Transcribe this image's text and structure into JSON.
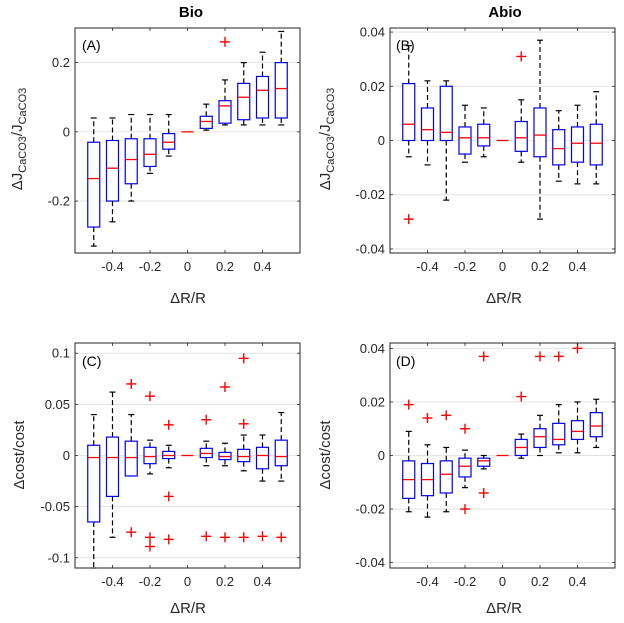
{
  "chart_data": [
    {
      "id": "A",
      "type": "box",
      "column_title": "Bio",
      "panel_label": "(A)",
      "xlabel": "ΔR/R",
      "ylabel_main": "ΔJ",
      "ylabel_sub1": "CaCO3",
      "ylabel_sep": "/J",
      "ylabel_sub2": "CaCO3",
      "xlim": [
        -0.6,
        0.6
      ],
      "ylim": [
        -0.35,
        0.3
      ],
      "xticks": [
        -0.4,
        -0.2,
        0,
        0.2,
        0.4
      ],
      "xtick_labels": [
        "-0.4",
        "-0.2",
        "0",
        "0.2",
        "0.4"
      ],
      "yticks": [
        -0.2,
        0,
        0.2
      ],
      "ytick_labels": [
        "-0.2",
        "0",
        "0.2"
      ],
      "grid": true,
      "boxes": [
        {
          "x": -0.5,
          "whislo": -0.33,
          "q1": -0.275,
          "med": -0.135,
          "q3": -0.03,
          "whishi": 0.04
        },
        {
          "x": -0.4,
          "whislo": -0.26,
          "q1": -0.2,
          "med": -0.105,
          "q3": -0.025,
          "whishi": 0.04
        },
        {
          "x": -0.3,
          "whislo": -0.2,
          "q1": -0.15,
          "med": -0.08,
          "q3": -0.02,
          "whishi": 0.05
        },
        {
          "x": -0.2,
          "whislo": -0.12,
          "q1": -0.1,
          "med": -0.065,
          "q3": -0.02,
          "whishi": 0.05
        },
        {
          "x": -0.1,
          "whislo": -0.07,
          "q1": -0.05,
          "med": -0.03,
          "q3": -0.005,
          "whishi": 0.05
        },
        {
          "x": 0,
          "whislo": 0,
          "q1": 0,
          "med": 0,
          "q3": 0,
          "whishi": 0
        },
        {
          "x": 0.1,
          "whislo": 0.005,
          "q1": 0.01,
          "med": 0.03,
          "q3": 0.045,
          "whishi": 0.08
        },
        {
          "x": 0.2,
          "whislo": 0.02,
          "q1": 0.025,
          "med": 0.075,
          "q3": 0.09,
          "whishi": 0.15
        },
        {
          "x": 0.3,
          "whislo": 0.02,
          "q1": 0.035,
          "med": 0.1,
          "q3": 0.14,
          "whishi": 0.2
        },
        {
          "x": 0.4,
          "whislo": 0.02,
          "q1": 0.04,
          "med": 0.12,
          "q3": 0.16,
          "whishi": 0.23
        },
        {
          "x": 0.5,
          "whislo": 0.02,
          "q1": 0.04,
          "med": 0.125,
          "q3": 0.2,
          "whishi": 0.29
        }
      ],
      "outliers": [
        {
          "x": 0.2,
          "y": 0.26
        }
      ]
    },
    {
      "id": "B",
      "type": "box",
      "column_title": "Abio",
      "panel_label": "(B)",
      "xlabel": "ΔR/R",
      "ylabel_main": "ΔJ",
      "ylabel_sub1": "CaCO3",
      "ylabel_sep": "/J",
      "ylabel_sub2": "CaCO3",
      "xlim": [
        -0.6,
        0.6
      ],
      "ylim": [
        -0.0415,
        0.0415
      ],
      "xticks": [
        -0.4,
        -0.2,
        0,
        0.2,
        0.4
      ],
      "xtick_labels": [
        "-0.4",
        "-0.2",
        "0",
        "0.2",
        "0.4"
      ],
      "yticks": [
        -0.04,
        -0.02,
        0,
        0.02,
        0.04
      ],
      "ytick_labels": [
        "-0.04",
        "-0.02",
        "0",
        "0.02",
        "0.04"
      ],
      "grid": true,
      "boxes": [
        {
          "x": -0.5,
          "whislo": -0.006,
          "q1": 0.0,
          "med": 0.006,
          "q3": 0.021,
          "whishi": 0.035
        },
        {
          "x": -0.4,
          "whislo": -0.009,
          "q1": 0.0,
          "med": 0.004,
          "q3": 0.012,
          "whishi": 0.022
        },
        {
          "x": -0.3,
          "whislo": -0.022,
          "q1": 0.0,
          "med": 0.003,
          "q3": 0.02,
          "whishi": 0.022
        },
        {
          "x": -0.2,
          "whislo": -0.008,
          "q1": -0.005,
          "med": 0.001,
          "q3": 0.005,
          "whishi": 0.013
        },
        {
          "x": -0.1,
          "whislo": -0.006,
          "q1": -0.002,
          "med": 0.001,
          "q3": 0.006,
          "whishi": 0.012
        },
        {
          "x": 0,
          "whislo": 0,
          "q1": 0,
          "med": 0,
          "q3": 0,
          "whishi": 0
        },
        {
          "x": 0.1,
          "whislo": -0.008,
          "q1": -0.004,
          "med": 0.001,
          "q3": 0.007,
          "whishi": 0.015
        },
        {
          "x": 0.2,
          "whislo": -0.029,
          "q1": -0.006,
          "med": 0.002,
          "q3": 0.012,
          "whishi": 0.037
        },
        {
          "x": 0.3,
          "whislo": -0.015,
          "q1": -0.009,
          "med": -0.003,
          "q3": 0.004,
          "whishi": 0.011
        },
        {
          "x": 0.4,
          "whislo": -0.016,
          "q1": -0.008,
          "med": -0.001,
          "q3": 0.005,
          "whishi": 0.013
        },
        {
          "x": 0.5,
          "whislo": -0.016,
          "q1": -0.009,
          "med": -0.001,
          "q3": 0.006,
          "whishi": 0.018
        }
      ],
      "outliers": [
        {
          "x": -0.5,
          "y": -0.029
        },
        {
          "x": 0.1,
          "y": 0.031
        }
      ]
    },
    {
      "id": "C",
      "type": "box",
      "column_title": "",
      "panel_label": "(C)",
      "xlabel": "ΔR/R",
      "ylabel_main": "Δcost/cost",
      "xlim": [
        -0.6,
        0.6
      ],
      "ylim": [
        -0.11,
        0.11
      ],
      "xticks": [
        -0.4,
        -0.2,
        0,
        0.2,
        0.4
      ],
      "xtick_labels": [
        "-0.4",
        "-0.2",
        "0",
        "0.2",
        "0.4"
      ],
      "yticks": [
        -0.1,
        -0.05,
        0,
        0.05,
        0.1
      ],
      "ytick_labels": [
        "-0.1",
        "-0.05",
        "0",
        "0.05",
        "0.1"
      ],
      "grid": true,
      "boxes": [
        {
          "x": -0.5,
          "whislo": -0.11,
          "q1": -0.065,
          "med": -0.002,
          "q3": 0.01,
          "whishi": 0.04
        },
        {
          "x": -0.4,
          "whislo": -0.08,
          "q1": -0.04,
          "med": -0.002,
          "q3": 0.018,
          "whishi": 0.062
        },
        {
          "x": -0.3,
          "whislo": -0.02,
          "q1": -0.02,
          "med": -0.002,
          "q3": 0.014,
          "whishi": 0.04
        },
        {
          "x": -0.2,
          "whislo": -0.018,
          "q1": -0.008,
          "med": -0.001,
          "q3": 0.008,
          "whishi": 0.015
        },
        {
          "x": -0.1,
          "whislo": -0.012,
          "q1": -0.003,
          "med": 0.0,
          "q3": 0.004,
          "whishi": 0.01
        },
        {
          "x": 0,
          "whislo": 0,
          "q1": 0,
          "med": 0,
          "q3": 0,
          "whishi": 0
        },
        {
          "x": 0.1,
          "whislo": -0.01,
          "q1": -0.002,
          "med": 0.002,
          "q3": 0.007,
          "whishi": 0.014
        },
        {
          "x": 0.2,
          "whislo": -0.01,
          "q1": -0.004,
          "med": -0.001,
          "q3": 0.003,
          "whishi": 0.012
        },
        {
          "x": 0.3,
          "whislo": -0.015,
          "q1": -0.006,
          "med": -0.001,
          "q3": 0.006,
          "whishi": 0.02
        },
        {
          "x": 0.4,
          "whislo": -0.025,
          "q1": -0.013,
          "med": 0.0,
          "q3": 0.008,
          "whishi": 0.02
        },
        {
          "x": 0.5,
          "whislo": -0.025,
          "q1": -0.01,
          "med": -0.001,
          "q3": 0.015,
          "whishi": 0.042
        }
      ],
      "outliers": [
        {
          "x": -0.3,
          "y": 0.07
        },
        {
          "x": -0.3,
          "y": -0.075
        },
        {
          "x": -0.2,
          "y": 0.058
        },
        {
          "x": -0.2,
          "y": -0.08
        },
        {
          "x": -0.2,
          "y": -0.089
        },
        {
          "x": -0.1,
          "y": 0.03
        },
        {
          "x": -0.1,
          "y": -0.04
        },
        {
          "x": -0.1,
          "y": -0.082
        },
        {
          "x": 0.1,
          "y": 0.035
        },
        {
          "x": 0.1,
          "y": -0.079
        },
        {
          "x": 0.2,
          "y": 0.067
        },
        {
          "x": 0.2,
          "y": -0.08
        },
        {
          "x": 0.3,
          "y": 0.095
        },
        {
          "x": 0.3,
          "y": 0.031
        },
        {
          "x": 0.3,
          "y": -0.08
        },
        {
          "x": 0.4,
          "y": -0.079
        },
        {
          "x": 0.5,
          "y": -0.08
        }
      ]
    },
    {
      "id": "D",
      "type": "box",
      "column_title": "",
      "panel_label": "(D)",
      "xlabel": "ΔR/R",
      "ylabel_main": "Δcost/cost",
      "xlim": [
        -0.6,
        0.6
      ],
      "ylim": [
        -0.042,
        0.042
      ],
      "xticks": [
        -0.4,
        -0.2,
        0,
        0.2,
        0.4
      ],
      "xtick_labels": [
        "-0.4",
        "-0.2",
        "0",
        "0.2",
        "0.4"
      ],
      "yticks": [
        -0.04,
        -0.02,
        0,
        0.02,
        0.04
      ],
      "ytick_labels": [
        "-0.04",
        "-0.02",
        "0",
        "0.02",
        "0.04"
      ],
      "grid": true,
      "boxes": [
        {
          "x": -0.5,
          "whislo": -0.021,
          "q1": -0.016,
          "med": -0.009,
          "q3": -0.002,
          "whishi": 0.009
        },
        {
          "x": -0.4,
          "whislo": -0.023,
          "q1": -0.015,
          "med": -0.009,
          "q3": -0.003,
          "whishi": 0.004
        },
        {
          "x": -0.3,
          "whislo": -0.021,
          "q1": -0.014,
          "med": -0.007,
          "q3": -0.002,
          "whishi": 0.003
        },
        {
          "x": -0.2,
          "whislo": -0.012,
          "q1": -0.008,
          "med": -0.004,
          "q3": -0.001,
          "whishi": 0.002
        },
        {
          "x": -0.1,
          "whislo": -0.005,
          "q1": -0.004,
          "med": -0.002,
          "q3": -0.001,
          "whishi": 0.0
        },
        {
          "x": 0,
          "whislo": 0,
          "q1": 0,
          "med": 0,
          "q3": 0,
          "whishi": 0
        },
        {
          "x": 0.1,
          "whislo": -0.001,
          "q1": 0.0,
          "med": 0.003,
          "q3": 0.006,
          "whishi": 0.008
        },
        {
          "x": 0.2,
          "whislo": 0.0,
          "q1": 0.003,
          "med": 0.007,
          "q3": 0.01,
          "whishi": 0.015
        },
        {
          "x": 0.3,
          "whislo": 0.001,
          "q1": 0.004,
          "med": 0.006,
          "q3": 0.012,
          "whishi": 0.019
        },
        {
          "x": 0.4,
          "whislo": 0.001,
          "q1": 0.006,
          "med": 0.009,
          "q3": 0.013,
          "whishi": 0.02
        },
        {
          "x": 0.5,
          "whislo": 0.003,
          "q1": 0.007,
          "med": 0.011,
          "q3": 0.016,
          "whishi": 0.021
        }
      ],
      "outliers": [
        {
          "x": -0.5,
          "y": 0.019
        },
        {
          "x": -0.4,
          "y": 0.014
        },
        {
          "x": -0.3,
          "y": 0.015
        },
        {
          "x": -0.2,
          "y": 0.01
        },
        {
          "x": -0.2,
          "y": -0.02
        },
        {
          "x": -0.1,
          "y": 0.037
        },
        {
          "x": -0.1,
          "y": -0.014
        },
        {
          "x": 0.1,
          "y": 0.022
        },
        {
          "x": 0.2,
          "y": 0.037
        },
        {
          "x": 0.3,
          "y": 0.037
        },
        {
          "x": 0.4,
          "y": 0.04
        }
      ]
    }
  ]
}
